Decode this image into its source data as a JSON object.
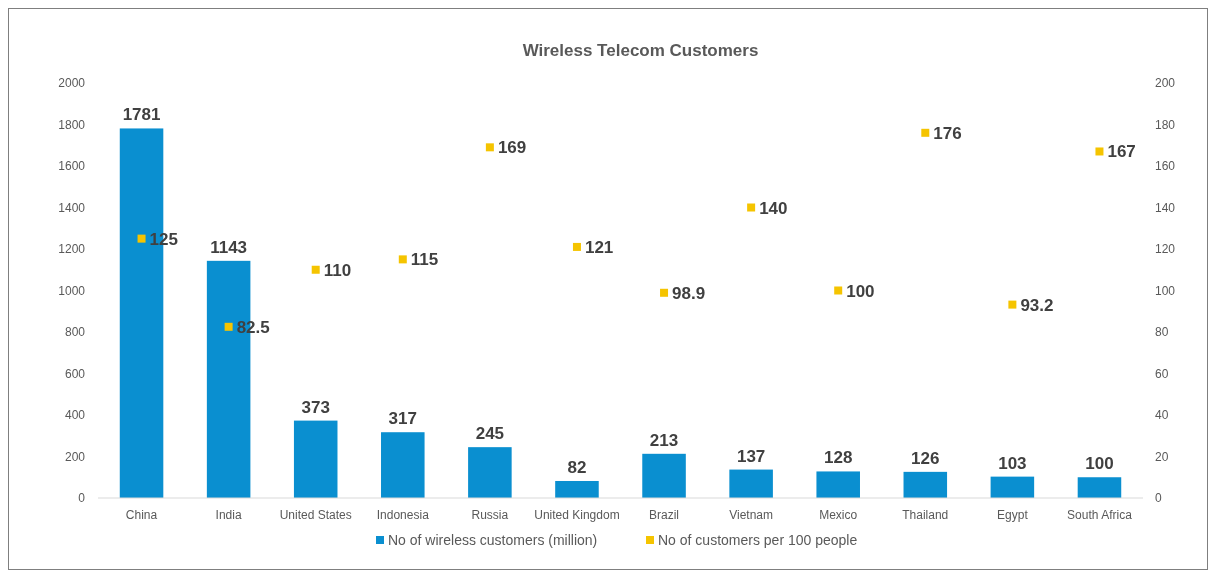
{
  "chart_data": {
    "type": "bar",
    "title": "Wireless Telecom Customers",
    "categories": [
      "China",
      "India",
      "United States",
      "Indonesia",
      "Russia",
      "United Kingdom",
      "Brazil",
      "Vietnam",
      "Mexico",
      "Thailand",
      "Egypt",
      "South Africa"
    ],
    "series": [
      {
        "name": "No of wireless customers (million)",
        "color": "#0a8fd0",
        "values": [
          1781,
          1143,
          373,
          317,
          245,
          82,
          213,
          137,
          128,
          126,
          103,
          100
        ]
      },
      {
        "name": "No of customers per 100 people",
        "type": "scatter",
        "axis": "y2",
        "marker": "square",
        "color": "#f5c400",
        "values": [
          125,
          82.5,
          110,
          115,
          169,
          121,
          98.9,
          140,
          100,
          176,
          93.2,
          167
        ]
      }
    ],
    "ylim": [
      0,
      2000
    ],
    "yticks": [
      0,
      200,
      400,
      600,
      800,
      1000,
      1200,
      1400,
      1600,
      1800,
      2000
    ],
    "y2lim": [
      0,
      200
    ],
    "y2ticks": [
      0,
      20,
      40,
      60,
      80,
      100,
      120,
      140,
      160,
      180,
      200
    ],
    "data_labels": true,
    "grid": false,
    "legend": "bottom"
  }
}
